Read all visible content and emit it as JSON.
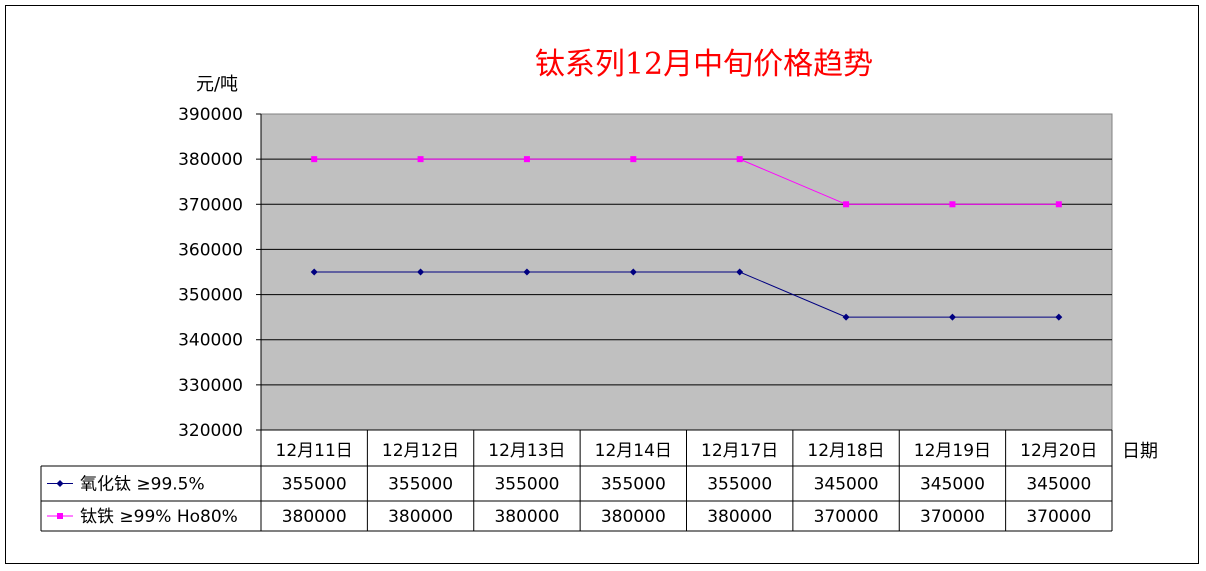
{
  "chart_data": {
    "type": "line",
    "title": "钛系列12月中旬价格趋势",
    "ylabel": "元/吨",
    "xlabel": "日期",
    "ylim": [
      320000,
      390000
    ],
    "yticks": [
      "390000",
      "380000",
      "370000",
      "360000",
      "350000",
      "340000",
      "330000",
      "320000"
    ],
    "categories": [
      "12月11日",
      "12月12日",
      "12月13日",
      "12月14日",
      "12月17日",
      "12月18日",
      "12月19日",
      "12月20日"
    ],
    "series": [
      {
        "name": "氧化钛 ≥99.5%",
        "color": "#000080",
        "marker": "diamond",
        "values": [
          355000,
          355000,
          355000,
          355000,
          355000,
          345000,
          345000,
          345000
        ],
        "labels": [
          "355000",
          "355000",
          "355000",
          "355000",
          "355000",
          "345000",
          "345000",
          "345000"
        ]
      },
      {
        "name": "钛铁 ≥99% Ho80%",
        "color": "#ff00ff",
        "marker": "square",
        "values": [
          380000,
          380000,
          380000,
          380000,
          380000,
          370000,
          370000,
          370000
        ],
        "labels": [
          "380000",
          "380000",
          "380000",
          "380000",
          "380000",
          "370000",
          "370000",
          "370000"
        ]
      }
    ],
    "plot_background": "#c0c0c0",
    "grid": true,
    "data_table": true
  }
}
